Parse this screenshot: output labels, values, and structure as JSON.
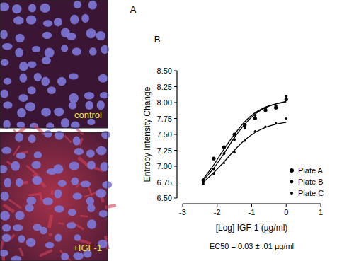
{
  "panel_labels": [
    "A",
    "B"
  ],
  "images": [
    {
      "label": "control"
    },
    {
      "label": "+IGF-1"
    }
  ],
  "chart_data": {
    "type": "scatter",
    "x_label": "[Log] IGF-1 (µg/ml)",
    "y_label": "Entropy Intensity Change",
    "annotation": "EC50 = 0.03 ± .01 µg/ml",
    "x": [
      -2.4,
      -2.1,
      -1.8,
      -1.5,
      -1.2,
      -0.9,
      -0.6,
      -0.3,
      0
    ],
    "series": [
      {
        "name": "Plate A",
        "color": "#000000",
        "marker": "circle",
        "values": [
          6.78,
          7.12,
          7.3,
          7.5,
          7.65,
          7.75,
          7.88,
          7.92,
          8.05
        ],
        "fit": [
          6.8,
          7.02,
          7.27,
          7.5,
          7.7,
          7.84,
          7.93,
          7.98,
          8.01
        ]
      },
      {
        "name": "Plate B",
        "color": "#000000",
        "marker": "circle",
        "values": [
          6.75,
          6.95,
          7.2,
          7.42,
          7.6,
          7.8,
          7.9,
          7.95,
          8.1
        ],
        "fit": [
          6.78,
          6.97,
          7.2,
          7.45,
          7.66,
          7.82,
          7.92,
          7.98,
          8.02
        ]
      },
      {
        "name": "Plate C",
        "color": "#000000",
        "marker": "circle",
        "values": [
          6.72,
          6.88,
          7.05,
          7.22,
          7.4,
          7.55,
          7.62,
          7.68,
          7.75
        ],
        "fit": [
          6.75,
          6.9,
          7.07,
          7.25,
          7.41,
          7.53,
          7.61,
          7.66,
          7.69
        ]
      }
    ],
    "xlim": [
      -3,
      1
    ],
    "xticks": [
      -3,
      -2,
      -1,
      0,
      1
    ],
    "ylim": [
      6.5,
      8.5
    ],
    "yticks": [
      {
        "value": 6.5,
        "label": "6.50"
      },
      6.75,
      {
        "value": 7,
        "label": "7.00"
      },
      7.25,
      {
        "value": 7.5,
        "label": "7.50"
      },
      7.75,
      {
        "value": 8,
        "label": "8.00"
      },
      8.25,
      {
        "value": 8.5,
        "label": "8.50"
      }
    ],
    "legend": "lower right",
    "grid": false
  }
}
